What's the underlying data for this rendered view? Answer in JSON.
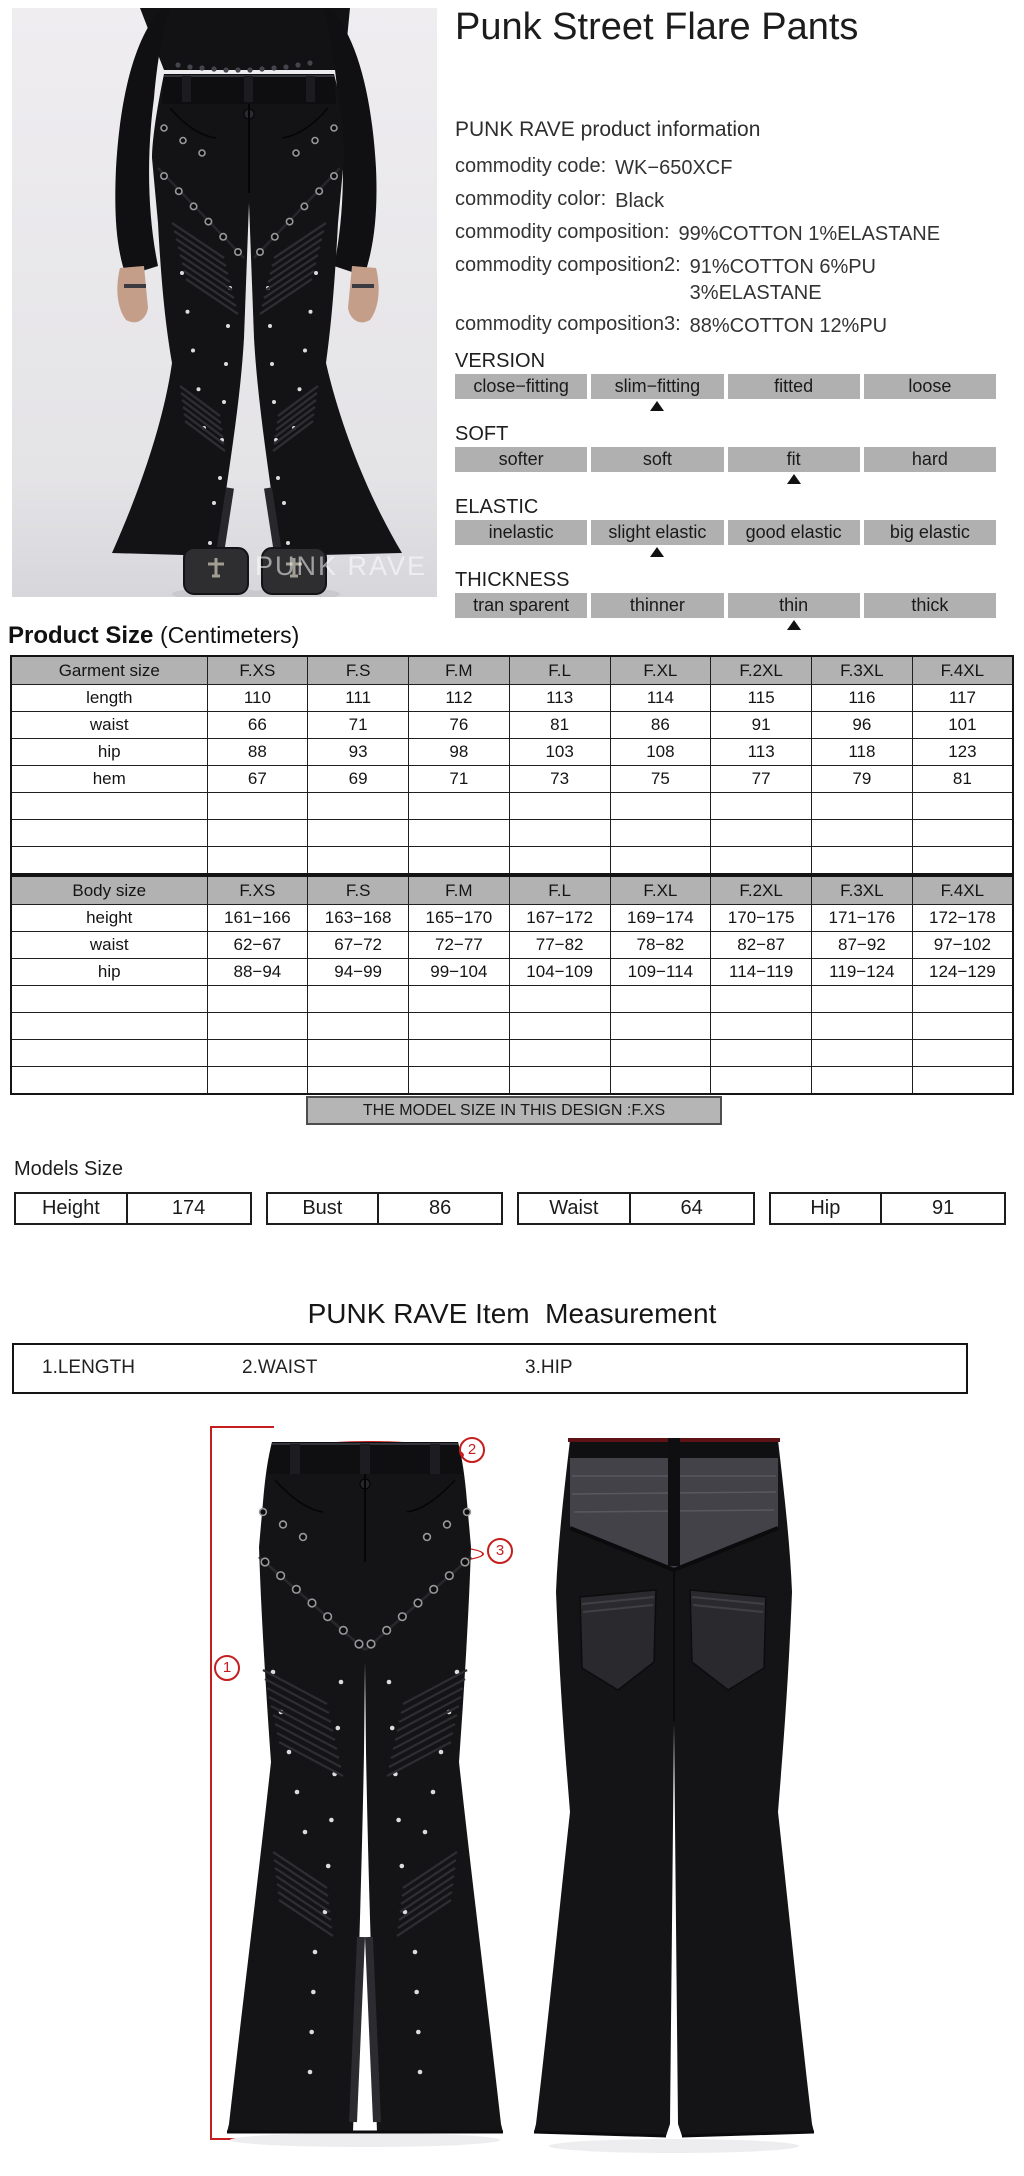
{
  "title": "Punk Street Flare Pants",
  "photo": {
    "watermark": "PUNK RAVE"
  },
  "product_info": {
    "heading": "PUNK RAVE product information",
    "rows": [
      {
        "label": "commodity code:",
        "value": "WK−650XCF"
      },
      {
        "label": "commodity color:",
        "value": "Black"
      },
      {
        "label": "commodity composition:",
        "value": "99%COTTON 1%ELASTANE"
      },
      {
        "label": "commodity composition2:",
        "value": "91%COTTON 6%PU",
        "value2": "3%ELASTANE"
      },
      {
        "label": "commodity composition3:",
        "value": "88%COTTON 12%PU"
      }
    ]
  },
  "attributes": [
    {
      "name": "VERSION",
      "options": [
        "close−fitting",
        "slim−fitting",
        "fitted",
        "loose"
      ],
      "selected": 1
    },
    {
      "name": "SOFT",
      "options": [
        "softer",
        "soft",
        "fit",
        "hard"
      ],
      "selected": 2
    },
    {
      "name": "ELASTIC",
      "options": [
        "inelastic",
        "slight elastic",
        "good elastic",
        "big elastic"
      ],
      "selected": 1
    },
    {
      "name": "THICKNESS",
      "options": [
        "tran sparent",
        "thinner",
        "thin",
        "thick"
      ],
      "selected": 2
    }
  ],
  "product_size": {
    "title_bold": "Product Size",
    "title_normal": "(Centimeters)",
    "garment": {
      "header": [
        "Garment size",
        "F.XS",
        "F.S",
        "F.M",
        "F.L",
        "F.XL",
        "F.2XL",
        "F.3XL",
        "F.4XL"
      ],
      "rows": [
        [
          "length",
          "110",
          "111",
          "112",
          "113",
          "114",
          "115",
          "116",
          "117"
        ],
        [
          "waist",
          "66",
          "71",
          "76",
          "81",
          "86",
          "91",
          "96",
          "101"
        ],
        [
          "hip",
          "88",
          "93",
          "98",
          "103",
          "108",
          "113",
          "118",
          "123"
        ],
        [
          "hem",
          "67",
          "69",
          "71",
          "73",
          "75",
          "77",
          "79",
          "81"
        ]
      ],
      "empty_rows": 3
    },
    "body": {
      "header": [
        "Body size",
        "F.XS",
        "F.S",
        "F.M",
        "F.L",
        "F.XL",
        "F.2XL",
        "F.3XL",
        "F.4XL"
      ],
      "rows": [
        [
          "height",
          "161−166",
          "163−168",
          "165−170",
          "167−172",
          "169−174",
          "170−175",
          "171−176",
          "172−178"
        ],
        [
          "waist",
          "62−67",
          "67−72",
          "72−77",
          "77−82",
          "78−82",
          "82−87",
          "87−92",
          "97−102"
        ],
        [
          "hip",
          "88−94",
          "94−99",
          "99−104",
          "104−109",
          "109−114",
          "114−119",
          "119−124",
          "124−129"
        ]
      ],
      "empty_rows": 4
    },
    "model_size_note": "THE MODEL SIZE IN THIS DESIGN :F.XS"
  },
  "models_size": {
    "heading": "Models Size",
    "entries": [
      {
        "label": "Height",
        "value": "174"
      },
      {
        "label": "Bust",
        "value": "86"
      },
      {
        "label": "Waist",
        "value": "64"
      },
      {
        "label": "Hip",
        "value": "91"
      }
    ]
  },
  "measurement": {
    "heading": "PUNK RAVE Item  Measurement",
    "legend": [
      "1.LENGTH",
      "2.WAIST",
      "3.HIP"
    ],
    "annotations": [
      "1",
      "2",
      "3"
    ]
  }
}
